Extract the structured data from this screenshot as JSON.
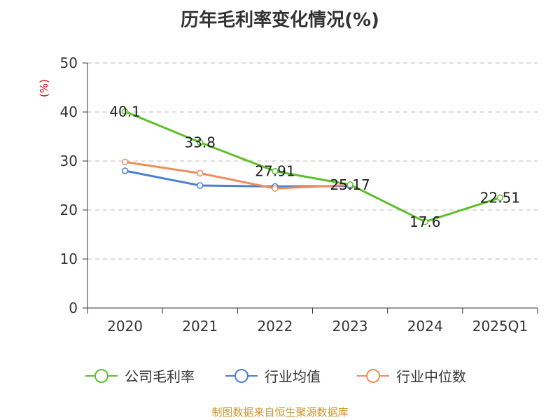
{
  "chart_data": {
    "type": "line",
    "title": "历年毛利率变化情况(%)",
    "unit_label": "(%)",
    "categories": [
      "2020",
      "2021",
      "2022",
      "2023",
      "2024",
      "2025Q1"
    ],
    "ylim": [
      0,
      50
    ],
    "yticks": [
      0,
      10,
      20,
      30,
      40,
      50
    ],
    "grid": true,
    "legend_position": "bottom",
    "series": [
      {
        "name": "公司毛利率",
        "color": "#5cbf2a",
        "values": [
          40.1,
          33.8,
          27.91,
          25.17,
          17.6,
          22.51
        ],
        "labels": [
          "40.1",
          "33.8",
          "27.91",
          "25.17",
          "17.6",
          "22.51"
        ]
      },
      {
        "name": "行业均值",
        "color": "#4a7fd4",
        "values": [
          28.0,
          25.0,
          24.8,
          24.9,
          null,
          null
        ]
      },
      {
        "name": "行业中位数",
        "color": "#f28c5a",
        "values": [
          29.8,
          27.5,
          24.4,
          25.1,
          null,
          null
        ]
      }
    ],
    "source": "制图数据来自恒生聚源数据库"
  }
}
